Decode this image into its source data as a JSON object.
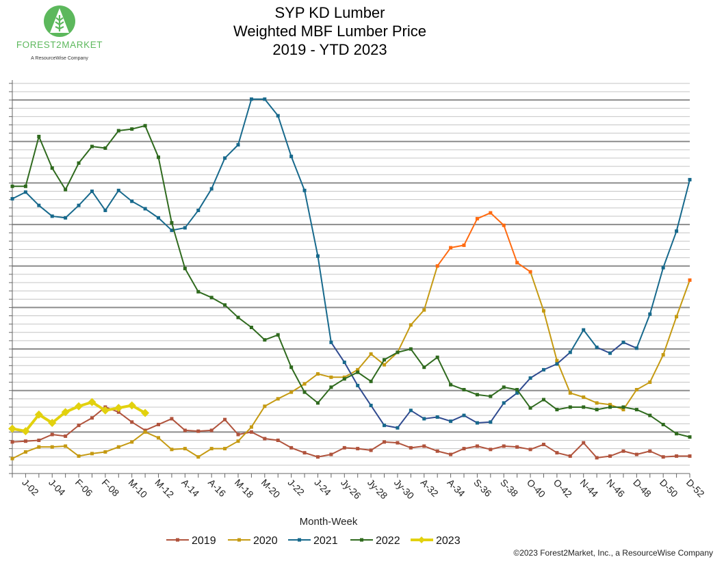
{
  "logo": {
    "name": "FOREST2MARKET",
    "tagline": "A ResourceWise Company",
    "color": "#5cb85c"
  },
  "copyright": "©2023 Forest2Market, Inc., a ResourceWise Company",
  "chart_data": {
    "type": "line",
    "title": [
      "SYP KD Lumber",
      "Weighted MBF Lumber Price",
      "2019 - YTD 2023"
    ],
    "xlabel": "Month-Week",
    "ylabel": "",
    "y_tick_labels_shown": false,
    "ylim": [
      0,
      47.4
    ],
    "grid": {
      "horizontal": true,
      "minor_step": 1,
      "major_every": 5
    },
    "legend_position": "bottom",
    "weeks": [
      1,
      2,
      3,
      4,
      5,
      6,
      7,
      8,
      9,
      10,
      11,
      12,
      13,
      14,
      15,
      16,
      17,
      18,
      19,
      20,
      21,
      22,
      23,
      24,
      25,
      26,
      27,
      28,
      29,
      30,
      31,
      32,
      33,
      34,
      35,
      36,
      37,
      38,
      39,
      40,
      41,
      42,
      43,
      44,
      45,
      46,
      47,
      48,
      49,
      50,
      51,
      52
    ],
    "x_tick_labels": [
      "J-02",
      "J-04",
      "F-06",
      "F-08",
      "M-10",
      "M-12",
      "A-14",
      "A-16",
      "M-18",
      "M-20",
      "J-22",
      "J-24",
      "Jy-26",
      "Jy-28",
      "Jy-30",
      "A-32",
      "A-34",
      "S-36",
      "S-38",
      "O-40",
      "O-42",
      "N-44",
      "N-46",
      "D-48",
      "D-50",
      "D-52"
    ],
    "series": [
      {
        "name": "2019",
        "color": "#b0533c",
        "marker": "square",
        "values": [
          3.8,
          3.9,
          4.0,
          4.7,
          4.5,
          5.8,
          6.7,
          8.0,
          7.4,
          6.2,
          5.2,
          5.9,
          6.6,
          5.2,
          5.1,
          5.2,
          6.5,
          4.7,
          5.0,
          4.2,
          4.0,
          3.1,
          2.5,
          2.0,
          2.3,
          3.1,
          3.0,
          2.8,
          3.8,
          3.7,
          3.1,
          3.3,
          2.7,
          2.3,
          3.0,
          3.3,
          2.9,
          3.3,
          3.2,
          2.9,
          3.5,
          2.5,
          2.1,
          3.7,
          1.9,
          2.1,
          2.7,
          2.3,
          2.7,
          2.0,
          2.1,
          2.1
        ]
      },
      {
        "name": "2020",
        "color": "#c59a12",
        "high_color": "#ff6a10",
        "marker": "square",
        "values": [
          1.8,
          2.6,
          3.2,
          3.2,
          3.3,
          2.1,
          2.4,
          2.6,
          3.2,
          3.8,
          5.0,
          4.3,
          2.9,
          3.0,
          2.0,
          3.0,
          3.0,
          3.9,
          5.6,
          8.1,
          9.0,
          9.8,
          10.8,
          12.0,
          11.6,
          11.6,
          12.5,
          14.4,
          13.1,
          14.6,
          17.9,
          19.7,
          25.0,
          27.2,
          27.5,
          30.7,
          31.4,
          29.9,
          25.4,
          24.3,
          19.6,
          13.6,
          9.7,
          9.2,
          8.5,
          8.3,
          7.7,
          10.1,
          11.0,
          14.3,
          18.9,
          23.3
        ]
      },
      {
        "name": "2021",
        "color": "#17698c",
        "low_color": "#2f4a8f",
        "marker": "square",
        "values": [
          33.1,
          33.9,
          32.3,
          31.0,
          30.8,
          32.3,
          34.0,
          31.7,
          34.1,
          32.8,
          31.9,
          30.8,
          29.3,
          29.6,
          31.7,
          34.3,
          38.0,
          39.6,
          45.1,
          45.1,
          43.1,
          38.2,
          34.1,
          26.2,
          15.8,
          13.4,
          10.6,
          8.2,
          5.8,
          5.5,
          7.6,
          6.6,
          6.8,
          6.3,
          7.0,
          6.1,
          6.2,
          8.5,
          9.7,
          11.5,
          12.5,
          13.2,
          14.6,
          17.3,
          15.2,
          14.5,
          15.8,
          15.1,
          19.2,
          24.8,
          29.2,
          35.4
        ]
      },
      {
        "name": "2022",
        "color": "#2f6a1e",
        "marker": "square",
        "values": [
          34.6,
          34.6,
          40.6,
          36.8,
          34.2,
          37.4,
          39.4,
          39.2,
          41.3,
          41.5,
          41.9,
          38.1,
          30.2,
          24.7,
          21.9,
          21.2,
          20.3,
          18.8,
          17.6,
          16.1,
          16.7,
          12.8,
          9.8,
          8.5,
          10.4,
          11.4,
          12.2,
          11.1,
          13.7,
          14.6,
          15.0,
          12.8,
          14.0,
          10.7,
          10.1,
          9.5,
          9.3,
          10.4,
          10.1,
          7.9,
          8.9,
          7.7,
          8.0,
          8.0,
          7.7,
          8.0,
          8.0,
          7.7,
          7.0,
          5.9,
          4.8,
          4.4
        ]
      },
      {
        "name": "2023",
        "color": "#e2d10e",
        "marker": "diamond",
        "values": [
          5.4,
          5.1,
          7.1,
          6.1,
          7.4,
          8.1,
          8.6,
          7.6,
          7.9,
          8.2,
          7.3
        ]
      }
    ]
  }
}
